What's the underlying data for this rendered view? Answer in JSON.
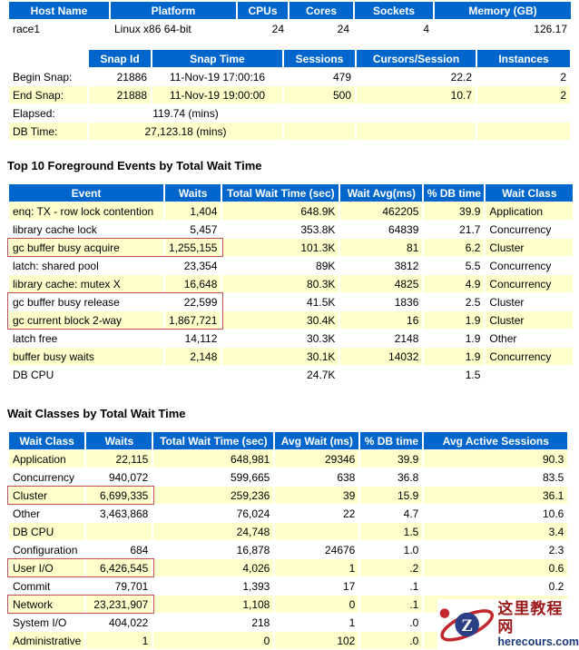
{
  "colors": {
    "header_bg": "#0066cc",
    "header_fg": "#ffffff",
    "stripe_bg": "#ffffcc",
    "highlight_border": "#c0504d",
    "watermark_red": "#c1272d",
    "watermark_navy": "#2a3f85"
  },
  "host_table": {
    "headers": [
      "Host Name",
      "Platform",
      "CPUs",
      "Cores",
      "Sockets",
      "Memory (GB)"
    ],
    "rows": [
      [
        "race1",
        "Linux x86 64-bit",
        "24",
        "24",
        "4",
        "126.17"
      ]
    ]
  },
  "snapshot_table": {
    "headers": [
      "Snap Id",
      "Snap Time",
      "Sessions",
      "Cursors/Session",
      "Instances"
    ],
    "snap_rows": [
      {
        "label": "Begin Snap:",
        "cells": [
          "21886",
          "11-Nov-19 17:00:16",
          "479",
          "22.2",
          "2"
        ]
      },
      {
        "label": "End Snap:",
        "cells": [
          "21888",
          "11-Nov-19 19:00:00",
          "500",
          "10.7",
          "2"
        ]
      }
    ],
    "summary_rows": [
      {
        "label": "Elapsed:",
        "value": "119.74 (mins)"
      },
      {
        "label": "DB Time:",
        "value": "27,123.18 (mins)"
      }
    ]
  },
  "top_events": {
    "title": "Top 10 Foreground Events by Total Wait Time",
    "headers": [
      "Event",
      "Waits",
      "Total Wait Time (sec)",
      "Wait Avg(ms)",
      "% DB time",
      "Wait Class"
    ],
    "rows": [
      [
        "enq: TX - row lock contention",
        "1,404",
        "648.9K",
        "462205",
        "39.9",
        "Application"
      ],
      [
        "library cache lock",
        "5,457",
        "353.8K",
        "64839",
        "21.7",
        "Concurrency"
      ],
      [
        "gc buffer busy acquire",
        "1,255,155",
        "101.3K",
        "81",
        "6.2",
        "Cluster"
      ],
      [
        "latch: shared pool",
        "23,354",
        "89K",
        "3812",
        "5.5",
        "Concurrency"
      ],
      [
        "library cache: mutex X",
        "16,648",
        "80.3K",
        "4825",
        "4.9",
        "Concurrency"
      ],
      [
        "gc buffer busy release",
        "22,599",
        "41.5K",
        "1836",
        "2.5",
        "Cluster"
      ],
      [
        "gc current block 2-way",
        "1,867,721",
        "30.4K",
        "16",
        "1.9",
        "Cluster"
      ],
      [
        "latch free",
        "14,112",
        "30.3K",
        "2148",
        "1.9",
        "Other"
      ],
      [
        "buffer busy waits",
        "2,148",
        "30.1K",
        "14032",
        "1.9",
        "Concurrency"
      ],
      [
        "DB CPU",
        "",
        "24.7K",
        "",
        "1.5",
        ""
      ]
    ],
    "highlighted_rows": [
      3,
      6,
      7
    ]
  },
  "wait_classes": {
    "title": "Wait Classes by Total Wait Time",
    "headers": [
      "Wait Class",
      "Waits",
      "Total Wait Time (sec)",
      "Avg Wait (ms)",
      "% DB time",
      "Avg Active Sessions"
    ],
    "rows": [
      [
        "Application",
        "22,115",
        "648,981",
        "29346",
        "39.9",
        "90.3"
      ],
      [
        "Concurrency",
        "940,072",
        "599,665",
        "638",
        "36.8",
        "83.5"
      ],
      [
        "Cluster",
        "6,699,335",
        "259,236",
        "39",
        "15.9",
        "36.1"
      ],
      [
        "Other",
        "3,463,868",
        "76,024",
        "22",
        "4.7",
        "10.6"
      ],
      [
        "DB CPU",
        "",
        "24,748",
        "",
        "1.5",
        "3.4"
      ],
      [
        "Configuration",
        "684",
        "16,878",
        "24676",
        "1.0",
        "2.3"
      ],
      [
        "User I/O",
        "6,426,545",
        "4,026",
        "1",
        ".2",
        "0.6"
      ],
      [
        "Commit",
        "79,701",
        "1,393",
        "17",
        ".1",
        "0.2"
      ],
      [
        "Network",
        "23,231,907",
        "1,108",
        "0",
        ".1",
        "0.2"
      ],
      [
        "System I/O",
        "404,022",
        "218",
        "1",
        ".0",
        "0.0"
      ],
      [
        "Administrative",
        "1",
        "0",
        "102",
        ".0",
        "0.0"
      ]
    ],
    "highlighted_rows": [
      3,
      7,
      9
    ]
  },
  "watermark": {
    "logo_letter": "Z",
    "site_name": "这里教程网",
    "site_url": "herecours.com"
  }
}
